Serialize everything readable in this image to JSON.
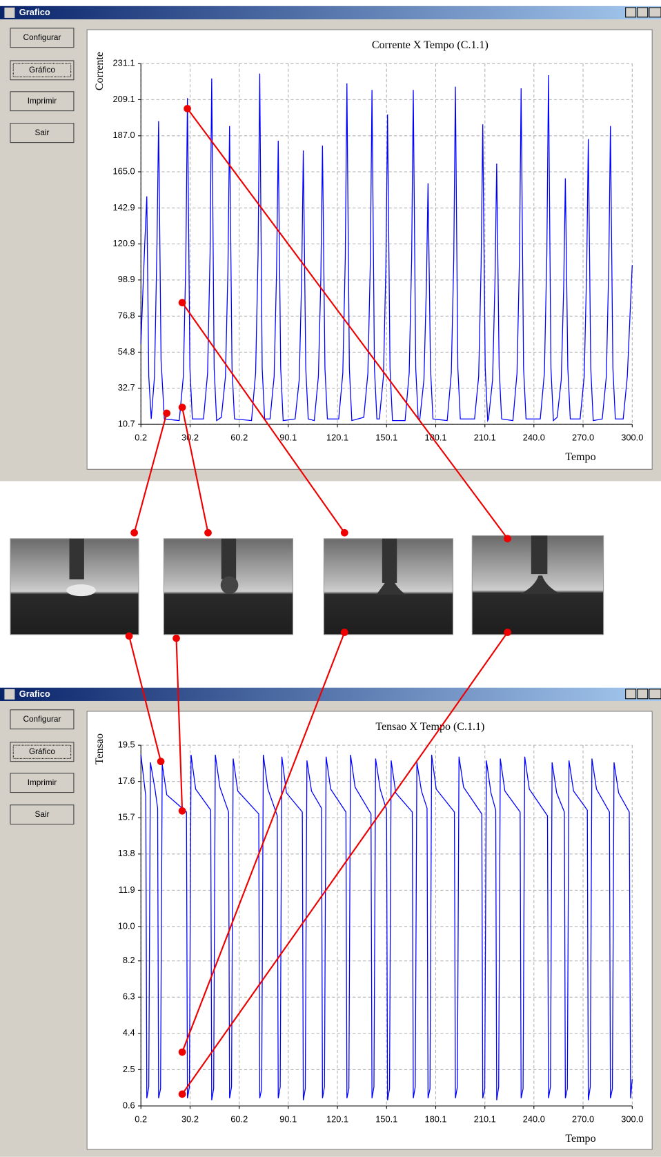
{
  "windows": [
    {
      "title": "Grafico",
      "buttons": [
        "Configurar",
        "Gráfico",
        "Imprimir",
        "Sair"
      ]
    },
    {
      "title": "Grafico",
      "buttons": [
        "Configurar",
        "Gráfico",
        "Imprimir",
        "Sair"
      ]
    }
  ],
  "chart_data": [
    {
      "type": "line",
      "title": "Corrente  X Tempo (C.1.1)",
      "x_label": "Tempo",
      "y_label": "Corrente",
      "color": "#0000ff",
      "grid": true,
      "xlim": [
        0.2,
        300
      ],
      "ylim": [
        10.7,
        231.1
      ],
      "xticks": [
        0.2,
        30.2,
        60.2,
        90.1,
        120.1,
        150.1,
        180.1,
        210.1,
        {
          "value": 240,
          "label": "240.0"
        },
        {
          "value": 270,
          "label": "270.0"
        },
        {
          "value": 300,
          "label": "300.0"
        }
      ],
      "yticks": [
        10.7,
        32.7,
        54.8,
        76.8,
        98.9,
        120.9,
        142.9,
        {
          "value": 165,
          "label": "165.0"
        },
        {
          "value": 187,
          "label": "187.0"
        },
        209.1,
        231.1
      ],
      "x": [
        0.2,
        2.5,
        3.8,
        5.0,
        6.5,
        8.5,
        10.0,
        11.0,
        12.5,
        14.5,
        23.6,
        26.1,
        27.6,
        28.6,
        30.1,
        31.6,
        38.4,
        40.9,
        42.4,
        43.4,
        44.9,
        46.4,
        49.3,
        51.8,
        53.3,
        54.3,
        55.8,
        57.3,
        67.7,
        70.2,
        71.7,
        72.7,
        74.2,
        75.7,
        79.0,
        81.5,
        83.0,
        84.0,
        85.5,
        87.0,
        94.3,
        96.8,
        98.3,
        99.3,
        100.8,
        102.3,
        106.0,
        108.5,
        110.0,
        111.0,
        112.5,
        114.0,
        120.9,
        123.4,
        124.9,
        125.9,
        127.4,
        128.9,
        136.2,
        138.7,
        140.2,
        141.2,
        142.7,
        144.2,
        145.7,
        148.2,
        149.7,
        150.7,
        152.2,
        153.7,
        161.4,
        163.9,
        165.4,
        166.4,
        167.9,
        169.4,
        170.4,
        172.9,
        174.4,
        175.4,
        176.9,
        178.4,
        187.1,
        189.6,
        191.1,
        192.1,
        193.6,
        195.1,
        203.8,
        206.3,
        207.8,
        208.8,
        210.3,
        211.8,
        212.3,
        214.8,
        216.3,
        217.3,
        218.8,
        220.3,
        227.2,
        229.7,
        231.2,
        232.2,
        233.7,
        235.2,
        243.9,
        246.4,
        247.9,
        248.9,
        250.4,
        251.9,
        254.2,
        256.7,
        258.2,
        259.2,
        260.7,
        262.2,
        268.2,
        270.7,
        272.2,
        273.2,
        274.7,
        276.2,
        281.7,
        284.2,
        285.7,
        286.7,
        288.2,
        289.7,
        294.5,
        297.0,
        300.0
      ],
      "values": [
        60,
        120,
        150,
        40,
        14,
        40,
        120,
        196,
        50,
        14,
        13,
        40,
        110,
        210,
        45,
        14,
        14,
        42,
        115,
        222,
        45,
        13,
        15,
        40,
        105,
        193,
        45,
        14,
        13,
        42,
        115,
        225,
        45,
        14,
        14,
        40,
        105,
        184,
        45,
        13,
        14,
        38,
        100,
        178,
        45,
        14,
        13,
        40,
        100,
        181,
        45,
        14,
        14,
        42,
        112,
        219,
        45,
        13,
        15,
        42,
        110,
        215,
        45,
        14,
        14,
        40,
        108,
        200,
        45,
        13,
        13,
        42,
        112,
        215,
        45,
        14,
        14,
        38,
        95,
        158,
        45,
        14,
        13,
        42,
        112,
        217,
        45,
        14,
        14,
        40,
        108,
        194,
        45,
        13,
        14,
        38,
        100,
        170,
        45,
        14,
        13,
        42,
        112,
        216,
        45,
        14,
        14,
        42,
        115,
        224,
        45,
        13,
        15,
        38,
        95,
        161,
        45,
        14,
        14,
        40,
        105,
        185,
        45,
        13,
        14,
        40,
        108,
        193,
        45,
        14,
        14,
        40,
        108
      ]
    },
    {
      "type": "line",
      "title": "Tensao X Tempo (C.1.1)",
      "x_label": "Tempo",
      "y_label": "Tensao",
      "color": "#0000ff",
      "grid": true,
      "xlim": [
        0.2,
        300
      ],
      "ylim": [
        0.6,
        19.5
      ],
      "xticks": [
        0.2,
        30.2,
        60.2,
        90.1,
        120.1,
        150.1,
        180.1,
        210.1,
        {
          "value": 240,
          "label": "240.0"
        },
        {
          "value": 270,
          "label": "270.0"
        },
        {
          "value": 300,
          "label": "300.0"
        }
      ],
      "yticks": [
        0.6,
        2.5,
        4.4,
        6.3,
        8.2,
        {
          "value": 10,
          "label": "10.0"
        },
        11.9,
        13.8,
        15.7,
        17.6,
        19.5
      ],
      "x": [
        0.2,
        3.2,
        3.8,
        5.0,
        6.0,
        8.8,
        10.4,
        11.0,
        12.2,
        13.2,
        16.0,
        28.0,
        28.6,
        29.8,
        30.8,
        33.6,
        42.8,
        43.4,
        44.6,
        45.6,
        48.4,
        53.7,
        54.3,
        55.5,
        56.5,
        59.3,
        72.1,
        72.7,
        73.9,
        74.9,
        77.7,
        83.4,
        84.0,
        85.2,
        86.2,
        89.0,
        98.7,
        99.3,
        100.5,
        101.5,
        104.3,
        110.4,
        111.0,
        112.2,
        113.2,
        116.0,
        125.3,
        125.9,
        127.1,
        128.1,
        130.9,
        140.6,
        141.2,
        142.4,
        143.4,
        146.2,
        150.1,
        150.7,
        151.9,
        152.9,
        155.7,
        165.8,
        166.4,
        167.6,
        168.6,
        171.4,
        174.8,
        175.4,
        176.6,
        177.6,
        180.4,
        191.5,
        192.1,
        193.3,
        194.3,
        197.1,
        208.2,
        208.8,
        210.0,
        211.0,
        213.8,
        216.7,
        217.3,
        218.5,
        219.5,
        222.3,
        231.6,
        232.2,
        233.4,
        234.4,
        237.2,
        248.3,
        248.9,
        250.1,
        251.1,
        253.9,
        258.6,
        259.2,
        260.4,
        261.4,
        264.2,
        272.6,
        273.2,
        274.4,
        275.4,
        278.2,
        286.1,
        286.7,
        287.9,
        288.9,
        291.7,
        298.2,
        299.0,
        300.0
      ],
      "values": [
        19.0,
        16.8,
        1.0,
        1.6,
        18.6,
        17.2,
        16.2,
        1.0,
        1.5,
        18.5,
        16.9,
        16.0,
        1.0,
        1.6,
        19.0,
        17.2,
        16.1,
        0.9,
        1.5,
        19.0,
        17.3,
        16.0,
        1.0,
        1.6,
        18.8,
        17.1,
        15.9,
        1.0,
        1.5,
        19.0,
        17.2,
        15.8,
        1.0,
        1.6,
        18.9,
        17.0,
        16.0,
        0.9,
        1.5,
        18.7,
        17.1,
        16.2,
        1.0,
        1.6,
        18.9,
        17.2,
        16.0,
        1.0,
        1.5,
        19.0,
        17.3,
        15.9,
        1.0,
        1.6,
        18.8,
        17.2,
        16.1,
        0.9,
        1.5,
        18.7,
        17.0,
        16.0,
        1.0,
        1.6,
        18.6,
        17.1,
        16.2,
        1.0,
        1.5,
        19.0,
        17.2,
        16.0,
        1.0,
        1.6,
        18.9,
        17.3,
        15.9,
        1.0,
        1.5,
        18.7,
        17.0,
        16.1,
        0.9,
        1.6,
        18.8,
        17.1,
        16.0,
        1.0,
        1.5,
        18.9,
        17.2,
        15.8,
        1.0,
        1.6,
        18.6,
        17.0,
        16.0,
        1.0,
        1.5,
        18.7,
        17.1,
        16.1,
        0.9,
        1.6,
        18.8,
        17.2,
        16.0,
        1.0,
        1.5,
        18.6,
        17.0,
        16.0,
        1.0,
        2.0
      ]
    }
  ]
}
